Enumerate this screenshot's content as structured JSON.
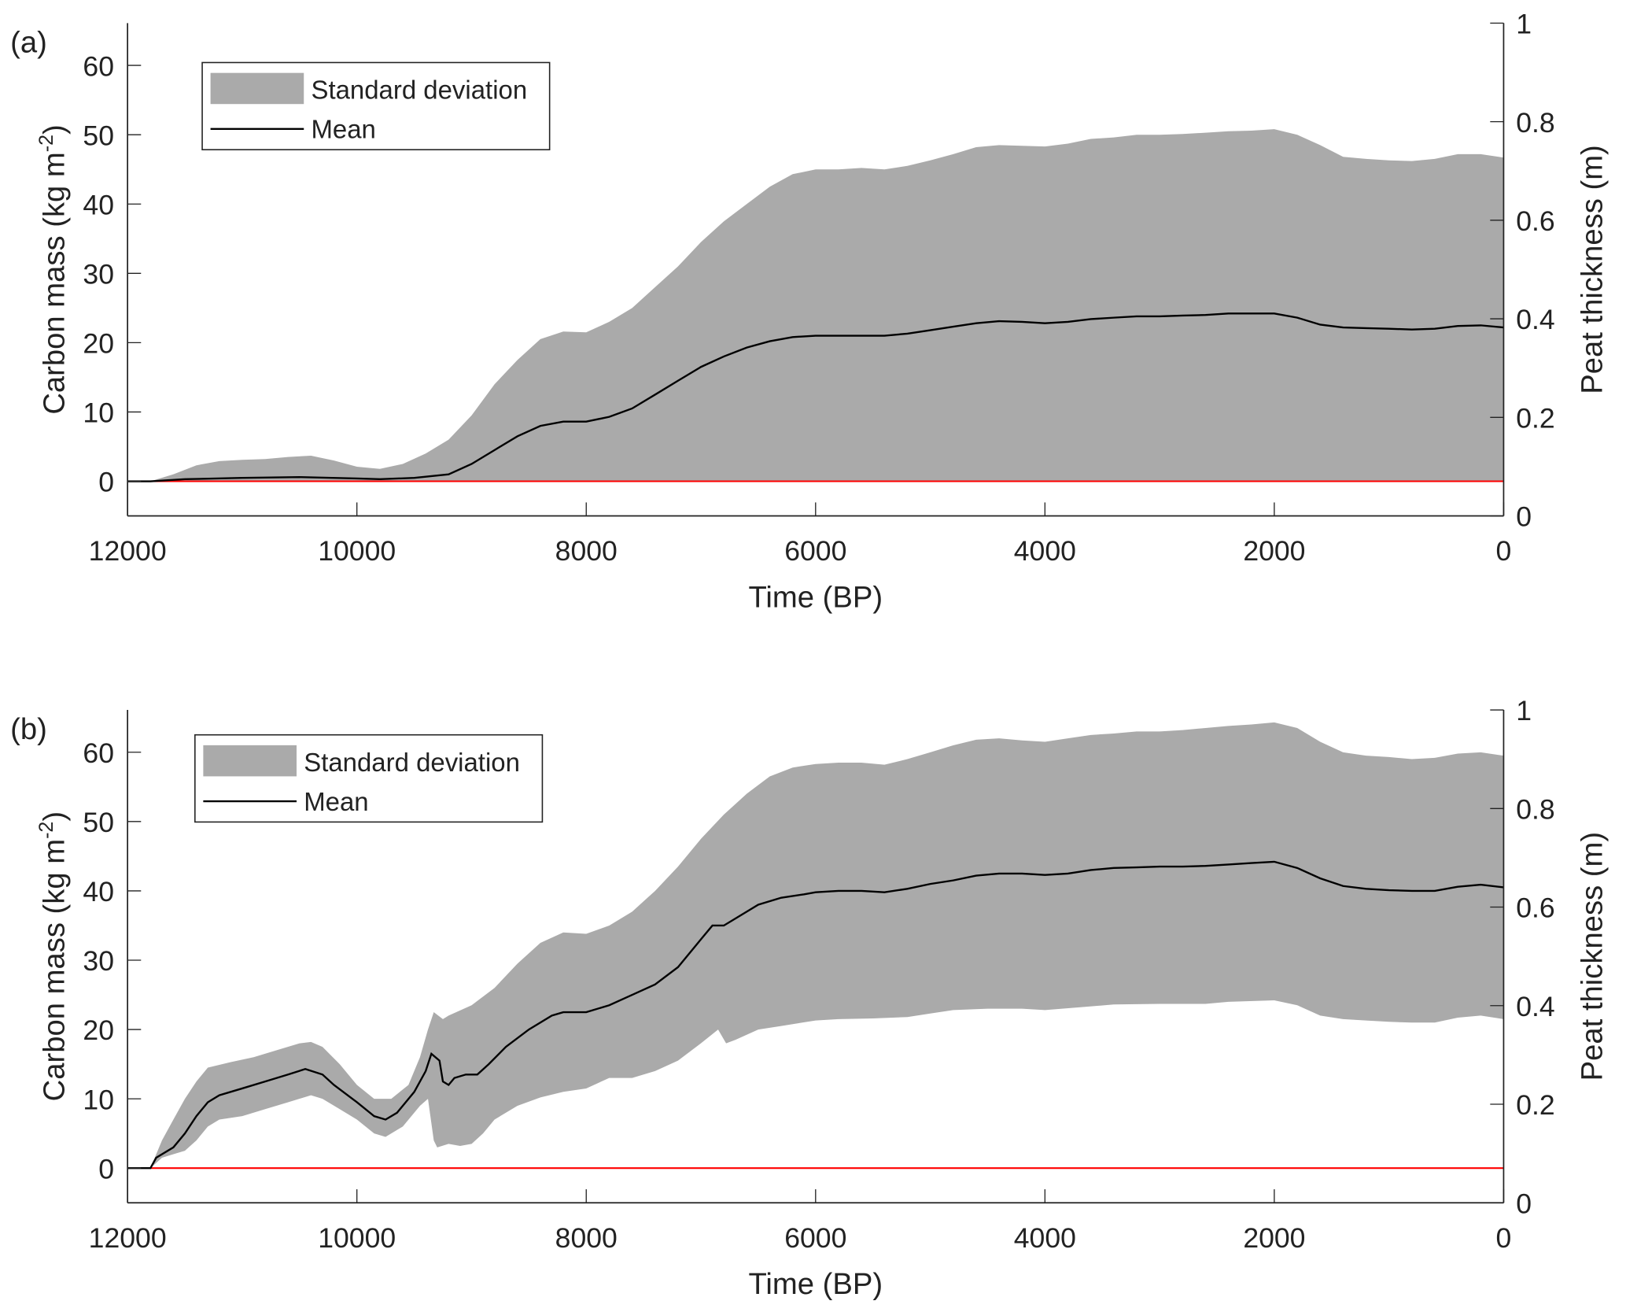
{
  "colors": {
    "band": "#aaaaaa",
    "mean": "#000000",
    "zero": "#ff0000",
    "axis": "#222222"
  },
  "chart_data": [
    {
      "type": "area",
      "panel_label": "(a)",
      "xlabel": "Time (BP)",
      "ylabel_parts": [
        "Carbon mass (kg m",
        "-2",
        ")"
      ],
      "y2label": "Peat thickness (m)",
      "xlim": [
        12000,
        0
      ],
      "ylim": [
        -5,
        66.1
      ],
      "y2lim": [
        0,
        1
      ],
      "xticks": [
        12000,
        10000,
        8000,
        6000,
        4000,
        2000,
        0
      ],
      "yticks": [
        0,
        10,
        20,
        30,
        40,
        50,
        60
      ],
      "y2ticks": [
        0,
        0.2,
        0.4,
        0.6,
        0.8,
        1
      ],
      "legend": {
        "position": "top-left",
        "entries": [
          "Standard deviation",
          "Mean"
        ]
      },
      "zero_line": {
        "from": 11800,
        "to": 0,
        "value": 0
      },
      "mean": {
        "x": [
          12000,
          11800,
          11500,
          11000,
          10500,
          10000,
          9800,
          9500,
          9200,
          9000,
          8800,
          8600,
          8400,
          8200,
          8000,
          7800,
          7600,
          7400,
          7200,
          7000,
          6800,
          6600,
          6400,
          6200,
          6000,
          5800,
          5600,
          5400,
          5200,
          5000,
          4800,
          4600,
          4400,
          4200,
          4000,
          3800,
          3600,
          3400,
          3200,
          3000,
          2800,
          2600,
          2400,
          2200,
          2000,
          1800,
          1600,
          1400,
          1200,
          1000,
          800,
          600,
          400,
          200,
          0
        ],
        "y": [
          0,
          0,
          0.3,
          0.5,
          0.6,
          0.4,
          0.3,
          0.5,
          1,
          2.5,
          4.5,
          6.5,
          8,
          8.6,
          8.6,
          9.3,
          10.5,
          12.5,
          14.5,
          16.5,
          18,
          19.3,
          20.2,
          20.8,
          21,
          21,
          21,
          21,
          21.3,
          21.8,
          22.3,
          22.8,
          23.1,
          23,
          22.8,
          23,
          23.4,
          23.6,
          23.8,
          23.8,
          23.9,
          24,
          24.2,
          24.2,
          24.2,
          23.6,
          22.6,
          22.2,
          22.1,
          22,
          21.9,
          22,
          22.4,
          22.5,
          22.2
        ]
      },
      "upper": {
        "x": [
          12000,
          11800,
          11600,
          11400,
          11200,
          11000,
          10800,
          10600,
          10400,
          10200,
          10000,
          9800,
          9600,
          9400,
          9200,
          9000,
          8800,
          8600,
          8400,
          8200,
          8000,
          7800,
          7600,
          7400,
          7200,
          7000,
          6800,
          6600,
          6400,
          6200,
          6000,
          5800,
          5600,
          5400,
          5200,
          5000,
          4800,
          4600,
          4400,
          4200,
          4000,
          3800,
          3600,
          3400,
          3200,
          3000,
          2800,
          2600,
          2400,
          2200,
          2000,
          1800,
          1600,
          1400,
          1200,
          1000,
          800,
          600,
          400,
          200,
          0
        ],
        "y": [
          0,
          0,
          1,
          2.3,
          2.9,
          3.1,
          3.2,
          3.5,
          3.7,
          3,
          2.1,
          1.8,
          2.5,
          4,
          6,
          9.5,
          14,
          17.5,
          20.5,
          21.6,
          21.5,
          23,
          25,
          28,
          31,
          34.5,
          37.5,
          40,
          42.5,
          44.3,
          45,
          45,
          45.2,
          45,
          45.5,
          46.3,
          47.2,
          48.2,
          48.5,
          48.4,
          48.3,
          48.7,
          49.4,
          49.6,
          50,
          50,
          50.1,
          50.3,
          50.5,
          50.6,
          50.8,
          50,
          48.5,
          46.8,
          46.5,
          46.3,
          46.2,
          46.5,
          47.2,
          47.2,
          46.7
        ]
      },
      "lower": {
        "x": [
          12000,
          0
        ],
        "y": [
          0,
          0
        ]
      }
    },
    {
      "type": "area",
      "panel_label": "(b)",
      "xlabel": "Time (BP)",
      "ylabel_parts": [
        "Carbon mass (kg m",
        "-2",
        ")"
      ],
      "y2label": "Peat thickness (m)",
      "xlim": [
        12000,
        0
      ],
      "ylim": [
        -5,
        66.1
      ],
      "y2lim": [
        0,
        1
      ],
      "xticks": [
        12000,
        10000,
        8000,
        6000,
        4000,
        2000,
        0
      ],
      "yticks": [
        0,
        10,
        20,
        30,
        40,
        50,
        60
      ],
      "y2ticks": [
        0,
        0.2,
        0.4,
        0.6,
        0.8,
        1
      ],
      "legend": {
        "position": "top-left",
        "entries": [
          "Standard deviation",
          "Mean"
        ]
      },
      "zero_line": {
        "from": 11800,
        "to": 0,
        "value": 0
      },
      "mean": {
        "x": [
          12000,
          11800,
          11750,
          11600,
          11500,
          11400,
          11300,
          11200,
          11000,
          10800,
          10600,
          10450,
          10300,
          10200,
          10000,
          9850,
          9750,
          9650,
          9500,
          9400,
          9350,
          9280,
          9250,
          9200,
          9150,
          9050,
          8950,
          8850,
          8700,
          8500,
          8300,
          8200,
          8000,
          7800,
          7600,
          7400,
          7200,
          7000,
          6900,
          6800,
          6700,
          6500,
          6300,
          6100,
          6000,
          5800,
          5600,
          5400,
          5200,
          5000,
          4800,
          4600,
          4400,
          4200,
          4000,
          3800,
          3600,
          3400,
          3200,
          3000,
          2800,
          2600,
          2400,
          2200,
          2000,
          1800,
          1600,
          1400,
          1200,
          1000,
          800,
          600,
          400,
          200,
          0
        ],
        "y": [
          0,
          0,
          1.5,
          3,
          5,
          7.5,
          9.5,
          10.5,
          11.5,
          12.5,
          13.5,
          14.3,
          13.5,
          12,
          9.5,
          7.5,
          7,
          8,
          11,
          14,
          16.5,
          15.5,
          12.5,
          12,
          13,
          13.5,
          13.5,
          15,
          17.5,
          20,
          22,
          22.5,
          22.5,
          23.5,
          25,
          26.5,
          29,
          33,
          35,
          35,
          36,
          38,
          39,
          39.5,
          39.8,
          40,
          40,
          39.8,
          40.3,
          41,
          41.5,
          42.2,
          42.5,
          42.5,
          42.3,
          42.5,
          43,
          43.3,
          43.4,
          43.5,
          43.5,
          43.6,
          43.8,
          44,
          44.2,
          43.3,
          41.8,
          40.7,
          40.3,
          40.1,
          40,
          40,
          40.6,
          40.9,
          40.5
        ]
      },
      "upper": {
        "x": [
          12000,
          11800,
          11700,
          11600,
          11500,
          11400,
          11300,
          11100,
          10900,
          10700,
          10500,
          10400,
          10300,
          10150,
          10000,
          9850,
          9700,
          9550,
          9450,
          9380,
          9330,
          9250,
          9200,
          9000,
          8800,
          8600,
          8400,
          8200,
          8000,
          7800,
          7600,
          7400,
          7200,
          7000,
          6800,
          6600,
          6400,
          6200,
          6000,
          5800,
          5600,
          5400,
          5200,
          5000,
          4800,
          4600,
          4400,
          4200,
          4000,
          3800,
          3600,
          3400,
          3200,
          3000,
          2800,
          2600,
          2400,
          2200,
          2000,
          1800,
          1600,
          1400,
          1200,
          1000,
          800,
          600,
          400,
          200,
          0
        ],
        "y": [
          0,
          0,
          4,
          7,
          10,
          12.5,
          14.5,
          15.3,
          16,
          17,
          18,
          18.2,
          17.5,
          15,
          12,
          10,
          10,
          12,
          16,
          20,
          22.5,
          21.5,
          22,
          23.5,
          26,
          29.5,
          32.5,
          34,
          33.8,
          35,
          37,
          40,
          43.5,
          47.5,
          51,
          54,
          56.5,
          57.8,
          58.3,
          58.5,
          58.5,
          58.2,
          59,
          60,
          61,
          61.8,
          62,
          61.7,
          61.5,
          62,
          62.5,
          62.7,
          63,
          63,
          63.2,
          63.5,
          63.8,
          64,
          64.3,
          63.5,
          61.5,
          60,
          59.5,
          59.3,
          59,
          59.2,
          59.8,
          60,
          59.5
        ]
      },
      "lower": {
        "x": [
          12000,
          11800,
          11700,
          11600,
          11500,
          11400,
          11300,
          11200,
          11000,
          10800,
          10600,
          10400,
          10300,
          10150,
          10000,
          9850,
          9750,
          9600,
          9450,
          9380,
          9330,
          9300,
          9200,
          9100,
          9000,
          8900,
          8800,
          8600,
          8400,
          8200,
          8000,
          7800,
          7600,
          7400,
          7200,
          7000,
          6850,
          6780,
          6700,
          6500,
          6300,
          6000,
          5800,
          5500,
          5200,
          5000,
          4800,
          4500,
          4200,
          4000,
          3700,
          3400,
          3000,
          2600,
          2400,
          2000,
          1800,
          1600,
          1400,
          1200,
          1000,
          800,
          600,
          400,
          200,
          0
        ],
        "y": [
          0,
          0,
          1.5,
          2,
          2.5,
          4,
          6,
          7,
          7.5,
          8.5,
          9.5,
          10.5,
          10,
          8.5,
          7,
          5,
          4.5,
          6,
          9,
          10,
          4,
          3,
          3.5,
          3.2,
          3.5,
          5,
          7,
          9,
          10.2,
          11,
          11.5,
          13,
          13,
          14,
          15.5,
          18,
          20,
          18,
          18.5,
          20,
          20.5,
          21.3,
          21.5,
          21.6,
          21.8,
          22.3,
          22.8,
          23,
          23,
          22.8,
          23.2,
          23.6,
          23.7,
          23.7,
          24,
          24.2,
          23.5,
          22,
          21.5,
          21.3,
          21.1,
          21,
          21,
          21.7,
          22,
          21.5
        ]
      }
    }
  ]
}
